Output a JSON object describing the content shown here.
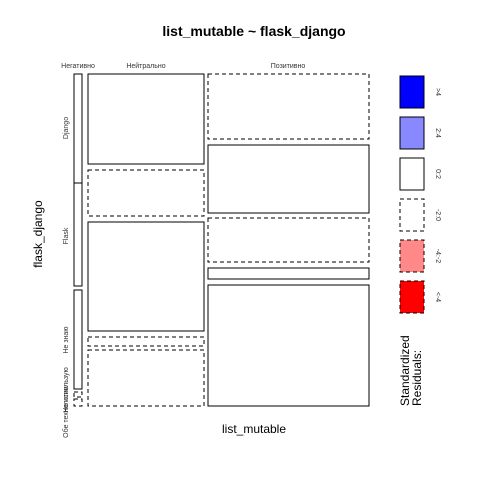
{
  "chart_data": {
    "type": "mosaic",
    "title": "list_mutable ~ flask_django",
    "xlabel": "list_mutable",
    "ylabel": "flask_django",
    "x_categories": [
      "Негативно",
      "Нейтрально",
      "Позитивно"
    ],
    "y_categories": [
      "Django",
      "Flask",
      "Не знаю",
      "Не использую",
      "Обе технологии"
    ],
    "cells": [
      {
        "x": "Негативно",
        "y": "Django",
        "proportion": 1.0,
        "residual_class": "0:2",
        "border": "solid"
      },
      {
        "x": "Нейтрально",
        "y": "Django",
        "proportion": 0.4,
        "residual_class": "0:2",
        "border": "solid"
      },
      {
        "x": "Позитивно",
        "y": "Django",
        "proportion": 0.6,
        "residual_class": "-2:0",
        "border": "dashed"
      },
      {
        "x": "Негативно",
        "y": "Flask",
        "proportion": 1.0,
        "residual_class": "0:2",
        "border": "solid"
      },
      {
        "x": "Нейтрально",
        "y": "Flask",
        "proportion": 0.29,
        "residual_class": "-2:0",
        "border": "dashed"
      },
      {
        "x": "Позитивно",
        "y": "Flask",
        "proportion": 0.71,
        "residual_class": "0:2",
        "border": "solid"
      },
      {
        "x": "Негативно",
        "y": "Не знаю",
        "proportion": 1.0,
        "residual_class": "0:2",
        "border": "solid"
      },
      {
        "x": "Нейтрально",
        "y": "Не знаю",
        "proportion": 0.72,
        "residual_class": "0:2",
        "border": "solid"
      },
      {
        "x": "Позитивно",
        "y": "Не знаю",
        "proportion": 0.28,
        "residual_class": "-2:0",
        "border": "dashed"
      },
      {
        "x": "Негативно",
        "y": "Не использую",
        "proportion": 0.5,
        "residual_class": "-2:0",
        "border": "dashed"
      },
      {
        "x": "Нейтрально",
        "y": "Не использую",
        "proportion": 0.15,
        "residual_class": "-2:0",
        "border": "dashed"
      },
      {
        "x": "Позитивно",
        "y": "Не использую",
        "proportion": 0.85,
        "residual_class": "0:2",
        "border": "solid"
      },
      {
        "x": "Негативно",
        "y": "Обе технологии",
        "proportion": 0.5,
        "residual_class": "-2:0",
        "border": "dashed"
      },
      {
        "x": "Нейтрально",
        "y": "Обе технологии",
        "proportion": 1.0,
        "residual_class": "-2:0",
        "border": "dashed"
      },
      {
        "x": "Позитивно",
        "y": "Обе технологии",
        "proportion": 1.0,
        "residual_class": "0:2",
        "border": "solid"
      }
    ],
    "legend": {
      "title_lines": [
        "Standardized",
        "Residuals:"
      ],
      "placement": "right",
      "entries": [
        {
          "label": ">4",
          "color": "#0000ff",
          "border": "solid"
        },
        {
          "label": "2:4",
          "color": "#8888ff",
          "border": "solid"
        },
        {
          "label": "0:2",
          "color": "#ffffff",
          "border": "solid"
        },
        {
          "label": "-2:0",
          "color": "#ffffff",
          "border": "dashed"
        },
        {
          "label": "-4:-2",
          "color": "#ff8888",
          "border": "dashed"
        },
        {
          "label": "<-4",
          "color": "#ff0000",
          "border": "dashed"
        }
      ]
    }
  }
}
